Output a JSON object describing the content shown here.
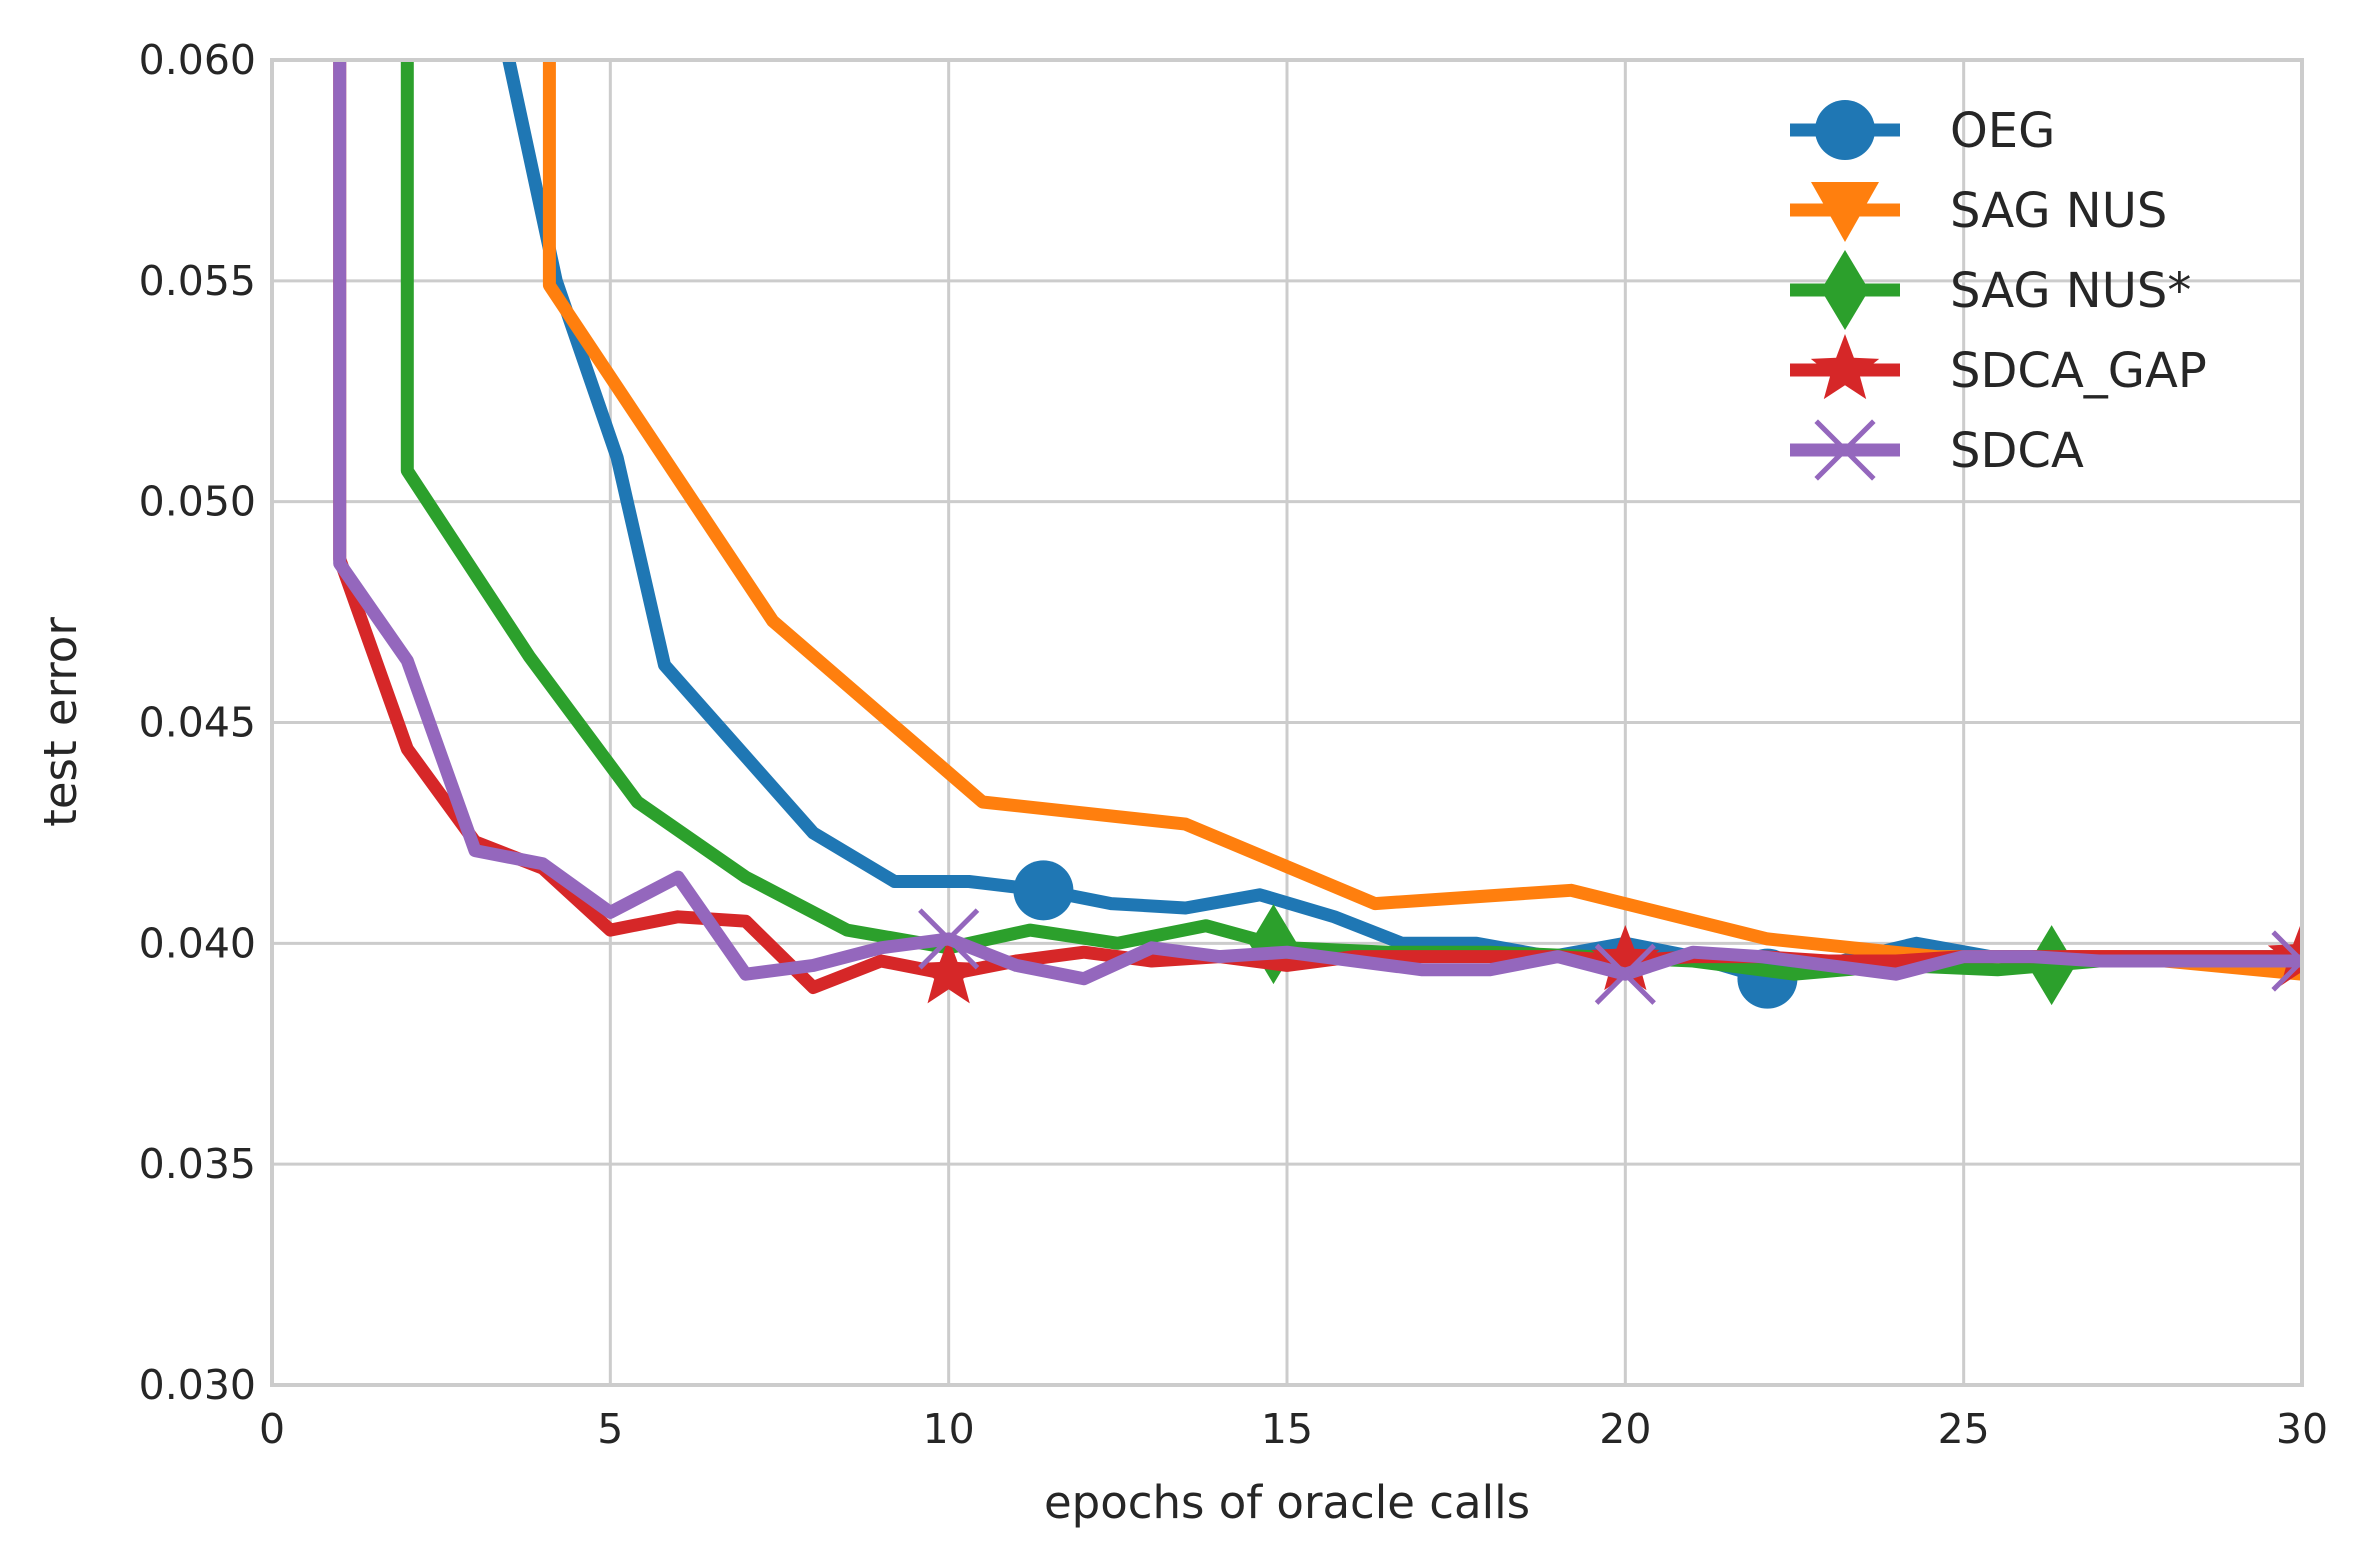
{
  "chart_data": {
    "type": "line",
    "title": "",
    "xlabel": "epochs of oracle calls",
    "ylabel": "test error",
    "xlim": [
      0,
      30
    ],
    "ylim": [
      0.03,
      0.06
    ],
    "x_ticks": [
      0,
      5,
      10,
      15,
      20,
      25,
      30
    ],
    "x_tick_labels": [
      "0",
      "5",
      "10",
      "15",
      "20",
      "25",
      "30"
    ],
    "y_ticks": [
      0.03,
      0.035,
      0.04,
      0.045,
      0.05,
      0.055,
      0.06
    ],
    "y_tick_labels": [
      "0.030",
      "0.035",
      "0.040",
      "0.045",
      "0.050",
      "0.055",
      "0.060"
    ],
    "grid": true,
    "legend_position": "top-right",
    "series": [
      {
        "name": "OEG",
        "color": "#1f77b4",
        "marker": "circle",
        "x": [
          3.5,
          4.2,
          5.1,
          5.8,
          6.9,
          8.0,
          9.2,
          10.3,
          11.4,
          12.4,
          13.5,
          14.6,
          15.7,
          16.7,
          17.8,
          18.9,
          20.0,
          21.0,
          22.1,
          23.2,
          24.3,
          25.4,
          26.4,
          27.5,
          28.6,
          29.7,
          30.0
        ],
        "y": [
          0.06,
          0.055,
          0.051,
          0.0463,
          0.0444,
          0.0425,
          0.0414,
          0.0414,
          0.0412,
          0.0409,
          0.0408,
          0.0411,
          0.0406,
          0.04,
          0.04,
          0.0397,
          0.04,
          0.0397,
          0.0392,
          0.0396,
          0.04,
          0.0397,
          0.0397,
          0.0397,
          0.0397,
          0.0397,
          0.0397
        ],
        "marker_x": [
          11.4,
          22.1
        ]
      },
      {
        "name": "SAG NUS",
        "color": "#ff7f0e",
        "marker": "triangle-down",
        "x": [
          4.1,
          4.1,
          7.4,
          10.5,
          13.5,
          16.3,
          19.2,
          22.1,
          24.6,
          27.3,
          30.0
        ],
        "y": [
          0.06,
          0.0549,
          0.0473,
          0.0432,
          0.0427,
          0.0409,
          0.0412,
          0.0401,
          0.0397,
          0.0397,
          0.0393
        ],
        "marker_x": []
      },
      {
        "name": "SAG NUS*",
        "color": "#2ca02c",
        "marker": "diamond",
        "x": [
          2.0,
          2.0,
          3.8,
          5.4,
          7.0,
          8.5,
          10.0,
          11.2,
          12.5,
          13.8,
          15.0,
          16.5,
          18.0,
          19.5,
          21.0,
          22.5,
          24.0,
          25.5,
          27.0,
          28.5,
          30.0
        ],
        "y": [
          0.06,
          0.0507,
          0.0465,
          0.0432,
          0.0415,
          0.0403,
          0.0399,
          0.0403,
          0.04,
          0.0404,
          0.0399,
          0.0398,
          0.0398,
          0.0397,
          0.0396,
          0.0393,
          0.0395,
          0.0394,
          0.0396,
          0.0396,
          0.0396
        ],
        "marker_x": [
          14.8,
          26.3
        ]
      },
      {
        "name": "SDCA_GAP",
        "color": "#d62728",
        "marker": "star",
        "x": [
          1.0,
          1.0,
          2.0,
          3.0,
          4.0,
          5.0,
          6.0,
          7.0,
          8.0,
          9.0,
          10.0,
          11.0,
          12.0,
          13.0,
          14.0,
          15.0,
          16.0,
          17.0,
          18.0,
          19.0,
          20.0,
          21.0,
          22.0,
          23.0,
          24.0,
          25.0,
          26.0,
          27.0,
          28.0,
          29.0,
          30.0
        ],
        "y": [
          0.06,
          0.0487,
          0.0444,
          0.0423,
          0.0417,
          0.0403,
          0.0406,
          0.0405,
          0.039,
          0.0396,
          0.0393,
          0.0396,
          0.0398,
          0.0396,
          0.0397,
          0.0395,
          0.0397,
          0.0397,
          0.0397,
          0.0397,
          0.0396,
          0.0397,
          0.0397,
          0.0396,
          0.0396,
          0.0397,
          0.0397,
          0.0397,
          0.0397,
          0.0397,
          0.0397
        ],
        "marker_x": [
          10.0,
          20.0,
          30.0
        ]
      },
      {
        "name": "SDCA",
        "color": "#9467bd",
        "marker": "x",
        "x": [
          1.0,
          1.0,
          2.0,
          3.0,
          4.0,
          5.0,
          6.0,
          7.0,
          8.0,
          9.0,
          10.0,
          11.0,
          12.0,
          13.0,
          14.0,
          15.0,
          16.0,
          17.0,
          18.0,
          19.0,
          20.0,
          21.0,
          22.0,
          23.0,
          24.0,
          25.0,
          26.0,
          27.0,
          28.0,
          29.0,
          30.0
        ],
        "y": [
          0.06,
          0.0486,
          0.0464,
          0.0421,
          0.0418,
          0.0407,
          0.0415,
          0.0393,
          0.0395,
          0.0399,
          0.0401,
          0.0395,
          0.0392,
          0.0399,
          0.0397,
          0.0398,
          0.0396,
          0.0394,
          0.0394,
          0.0397,
          0.0393,
          0.0398,
          0.0397,
          0.0395,
          0.0393,
          0.0397,
          0.0397,
          0.0396,
          0.0396,
          0.0396,
          0.0396
        ],
        "marker_x": [
          10.0,
          20.0,
          30.0
        ]
      }
    ]
  }
}
